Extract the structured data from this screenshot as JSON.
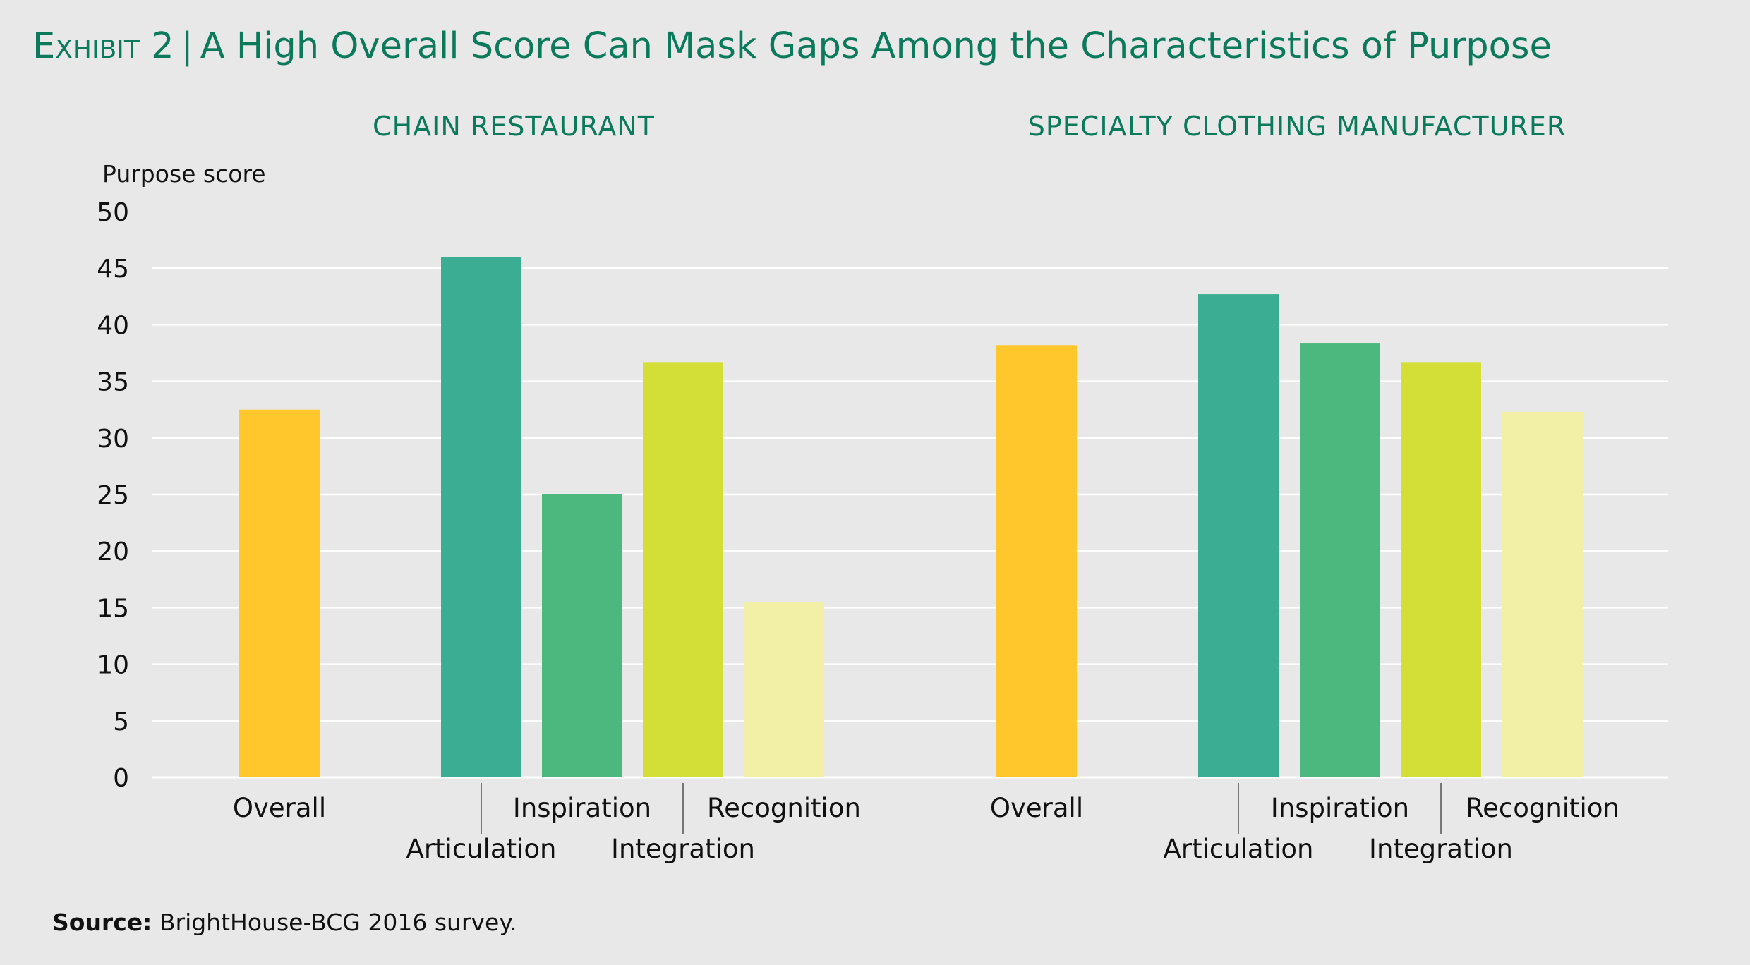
{
  "header": {
    "exhibit": "Exhibit 2",
    "separator": "|",
    "title": "A High Overall Score Can Mask Gaps Among the Characteristics of Purpose"
  },
  "footer": {
    "source_label": "Source:",
    "source_text": "BrightHouse-BCG 2016 survey."
  },
  "colors": {
    "title": "#0b7a5a",
    "overall": "#ffc72c",
    "articulation": "#3aad93",
    "inspiration": "#4cb87e",
    "integration": "#d3df36",
    "recognition": "#f2f0a6",
    "gridline": "#ffffff",
    "background": "#e8e8e9"
  },
  "chart_data": [
    {
      "type": "bar",
      "title": "CHAIN RESTAURANT",
      "ylabel": "Purpose score",
      "ylim": [
        0,
        50
      ],
      "yticks": [
        0,
        5,
        10,
        15,
        20,
        25,
        30,
        35,
        40,
        45,
        50
      ],
      "categories": [
        "Overall",
        "Articulation",
        "Inspiration",
        "Integration",
        "Recognition"
      ],
      "values": [
        32.5,
        46,
        25,
        36.7,
        15.5
      ]
    },
    {
      "type": "bar",
      "title": "SPECIALTY CLOTHING MANUFACTURER",
      "ylabel": "Purpose score",
      "ylim": [
        0,
        50
      ],
      "yticks": [
        0,
        5,
        10,
        15,
        20,
        25,
        30,
        35,
        40,
        45,
        50
      ],
      "categories": [
        "Overall",
        "Articulation",
        "Inspiration",
        "Integration",
        "Recognition"
      ],
      "values": [
        38.2,
        42.7,
        38.4,
        36.7,
        32.3
      ]
    }
  ]
}
